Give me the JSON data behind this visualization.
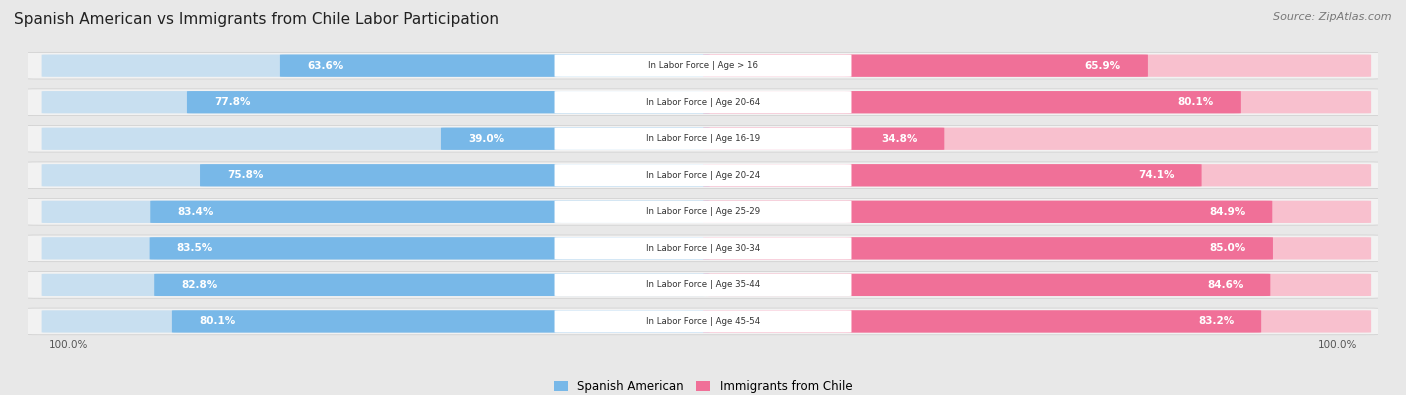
{
  "title": "Spanish American vs Immigrants from Chile Labor Participation",
  "source": "Source: ZipAtlas.com",
  "categories": [
    "In Labor Force | Age > 16",
    "In Labor Force | Age 20-64",
    "In Labor Force | Age 16-19",
    "In Labor Force | Age 20-24",
    "In Labor Force | Age 25-29",
    "In Labor Force | Age 30-34",
    "In Labor Force | Age 35-44",
    "In Labor Force | Age 45-54"
  ],
  "spanish_american": [
    63.6,
    77.8,
    39.0,
    75.8,
    83.4,
    83.5,
    82.8,
    80.1
  ],
  "immigrants_chile": [
    65.9,
    80.1,
    34.8,
    74.1,
    84.9,
    85.0,
    84.6,
    83.2
  ],
  "spanish_color": "#78B8E8",
  "chile_color": "#F07098",
  "spanish_color_light": "#C8DFF0",
  "chile_color_light": "#F8C0CE",
  "background_color": "#E8E8E8",
  "row_bg_color": "#F2F2F2",
  "row_border_color": "#CCCCCC",
  "center_label_color": "#FFFFFF",
  "max_value": 100.0,
  "bar_height": 0.62,
  "legend_spanish": "Spanish American",
  "legend_chile": "Immigrants from Chile",
  "title_fontsize": 11,
  "source_fontsize": 8,
  "label_fontsize": 7.5,
  "value_fontsize": 7.5
}
